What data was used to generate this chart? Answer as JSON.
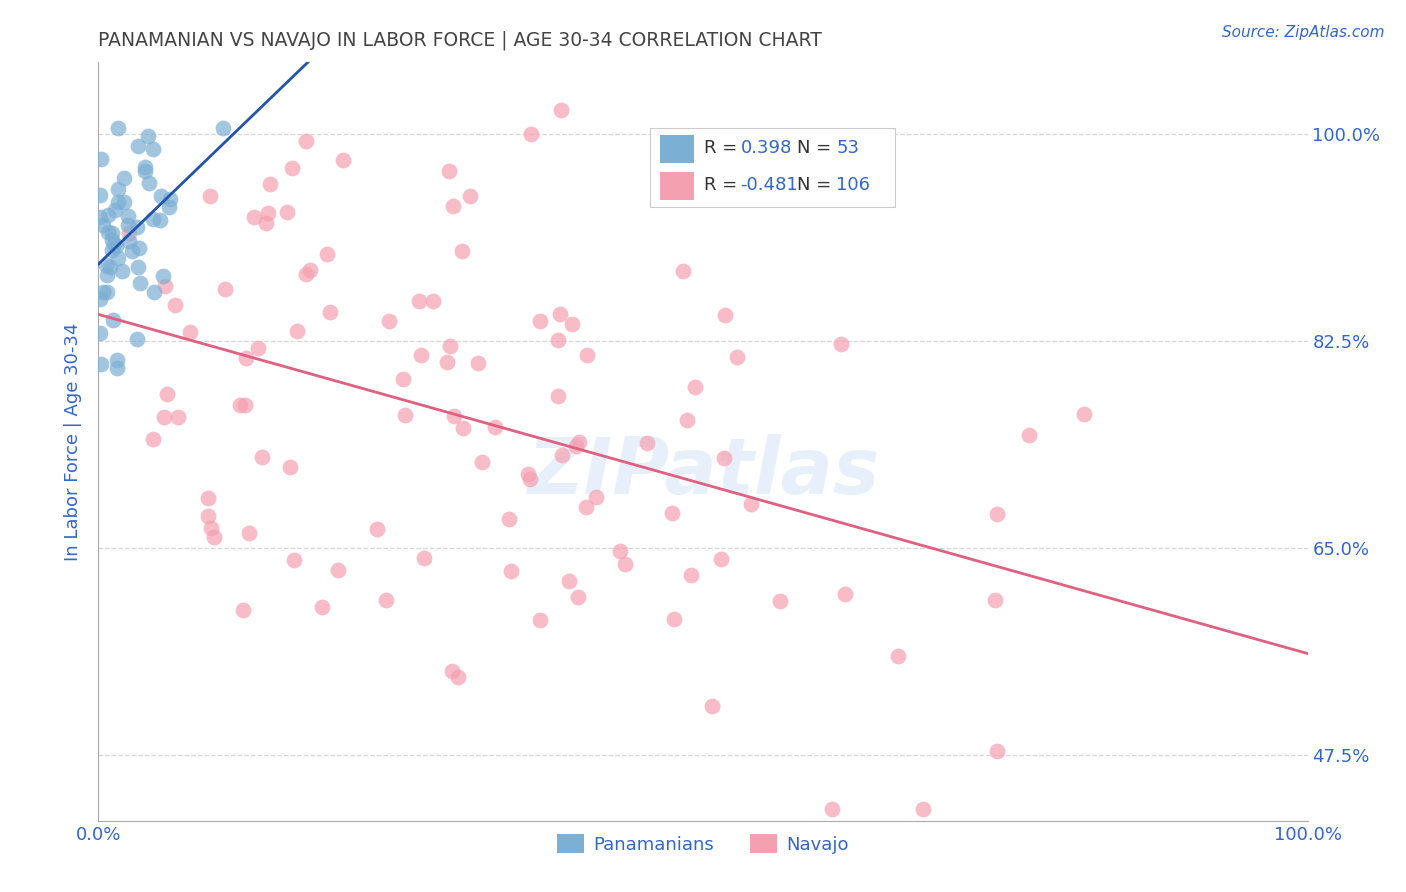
{
  "title": "PANAMANIAN VS NAVAJO IN LABOR FORCE | AGE 30-34 CORRELATION CHART",
  "source": "Source: ZipAtlas.com",
  "ylabel": "In Labor Force | Age 30-34",
  "xlim": [
    0.0,
    1.0
  ],
  "ylim": [
    0.42,
    1.06
  ],
  "yticks": [
    0.475,
    0.65,
    0.825,
    1.0
  ],
  "ytick_labels": [
    "47.5%",
    "65.0%",
    "82.5%",
    "100.0%"
  ],
  "xtick_labels": [
    "0.0%",
    "100.0%"
  ],
  "xticks": [
    0.0,
    1.0
  ],
  "blue_color": "#7BAFD4",
  "pink_color": "#F4A0B0",
  "blue_line_color": "#2255AA",
  "pink_line_color": "#E06080",
  "R_blue": 0.398,
  "N_blue": 53,
  "R_pink": -0.481,
  "N_pink": 106,
  "watermark": "ZIPatlas",
  "background_color": "#FFFFFF",
  "grid_color": "#CCCCCC",
  "title_color": "#444444",
  "axis_label_color": "#3366CC",
  "tick_label_color": "#3366CC",
  "legend_text_color": "#3366CC"
}
